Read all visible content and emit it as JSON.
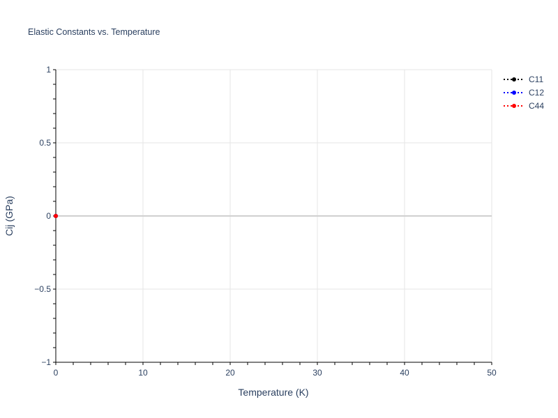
{
  "chart_data": {
    "type": "line",
    "title": "Elastic Constants vs. Temperature",
    "xlabel": "Temperature (K)",
    "ylabel": "Cij (GPa)",
    "xlim": [
      0,
      50
    ],
    "ylim": [
      -1,
      1
    ],
    "xticks": [
      0,
      10,
      20,
      30,
      40,
      50
    ],
    "xtick_labels": [
      "0",
      "10",
      "20",
      "30",
      "40",
      "50"
    ],
    "yticks": [
      -1,
      -0.5,
      0,
      0.5,
      1
    ],
    "ytick_labels": [
      "−1",
      "−0.5",
      "0",
      "0.5",
      "1"
    ],
    "grid": true,
    "legend_position": "top-right",
    "series": [
      {
        "name": "C11",
        "color": "#000000",
        "line_style": "dotted",
        "marker": "circle",
        "x": [
          0
        ],
        "y": [
          0
        ]
      },
      {
        "name": "C12",
        "color": "#0000ff",
        "line_style": "dotted",
        "marker": "circle",
        "x": [
          0
        ],
        "y": [
          0
        ]
      },
      {
        "name": "C44",
        "color": "#ff0000",
        "line_style": "dotted",
        "marker": "circle",
        "x": [
          0
        ],
        "y": [
          0
        ]
      }
    ]
  }
}
